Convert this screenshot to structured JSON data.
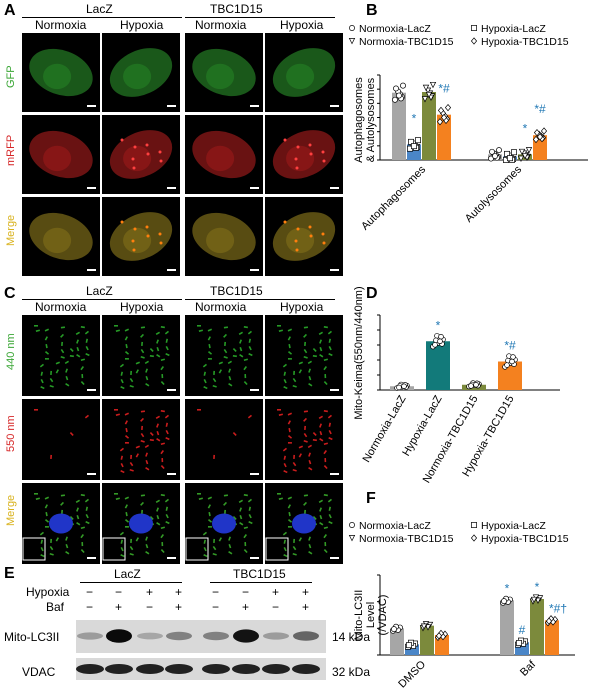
{
  "panels": {
    "A": {
      "letter": "A",
      "groups": [
        "LacZ",
        "TBC1D15"
      ],
      "conditions": [
        "Normoxia",
        "Hypoxia",
        "Normoxia",
        "Hypoxia"
      ],
      "channels": [
        "GFP",
        "mRFP",
        "Merge"
      ],
      "channel_colors": [
        "#3aa635",
        "#d62728",
        "#d9b21c"
      ]
    },
    "B": {
      "letter": "B"
    },
    "C": {
      "letter": "C",
      "groups": [
        "LacZ",
        "TBC1D15"
      ],
      "conditions": [
        "Normoxia",
        "Hypoxia",
        "Normoxia",
        "Hypoxia"
      ],
      "channels": [
        "440 nm",
        "550 nm",
        "Merge"
      ],
      "channel_colors": [
        "#3aa635",
        "#d62728",
        "#d9b21c"
      ]
    },
    "D": {
      "letter": "D"
    },
    "E": {
      "letter": "E",
      "groups": [
        "LacZ",
        "TBC1D15"
      ],
      "row_labels": [
        "Hypoxia",
        "Baf"
      ],
      "hypoxia_signs": [
        "−",
        "−",
        "+",
        "+",
        "−",
        "−",
        "+",
        "+"
      ],
      "baf_signs": [
        "−",
        "+",
        "−",
        "+",
        "−",
        "+",
        "−",
        "+"
      ],
      "bands": [
        "Mito-LC3II",
        "VDAC"
      ],
      "sizes": [
        "14 kDa",
        "32 kDa"
      ]
    },
    "F": {
      "letter": "F"
    }
  },
  "chart_data": [
    {
      "panel": "B",
      "type": "bar",
      "ylabel": "Autophagosomes & Autolysosomes",
      "categories": [
        "Autophagosomes",
        "Autolysosomes"
      ],
      "series": [
        {
          "name": "Normoxia-LacZ",
          "color": "#a6a6a6",
          "marker": "circle",
          "values": [
            95,
            8
          ]
        },
        {
          "name": "Hypoxia-LacZ",
          "color": "#4a86c8",
          "marker": "square",
          "values": [
            22,
            5
          ]
        },
        {
          "name": "Normoxia-TBC1D15",
          "color": "#7c8a3c",
          "marker": "triangle",
          "values": [
            96,
            8
          ]
        },
        {
          "name": "Hypoxia-TBC1D15",
          "color": "#f4811f",
          "marker": "diamond",
          "values": [
            64,
            35
          ]
        }
      ],
      "annotations": [
        [
          "",
          "*",
          "",
          "*#"
        ],
        [
          "",
          "",
          "*",
          "*#"
        ]
      ],
      "ylim": [
        0,
        120
      ]
    },
    {
      "panel": "D",
      "type": "bar",
      "ylabel": "Mito-Keima(550nm/440nm)",
      "categories": [
        "Normoxia-LacZ",
        "Hypoxia-LacZ",
        "Normoxia-TBC1D15",
        "Hypoxia-TBC1D15"
      ],
      "colors": [
        "#a6a6a6",
        "#127a7a",
        "#7c8a3c",
        "#f4811f"
      ],
      "values": [
        0.05,
        0.65,
        0.07,
        0.38
      ],
      "annotations": [
        "",
        "*",
        "",
        "*#"
      ],
      "ylim": [
        0,
        1.0
      ]
    },
    {
      "panel": "F",
      "type": "bar",
      "ylabel": "Mito-LC3II Level (/VDAC)",
      "categories": [
        "DMSO",
        "Baf"
      ],
      "series": [
        {
          "name": "Normoxia-LacZ",
          "color": "#a6a6a6",
          "marker": "circle",
          "values": [
            1.0,
            2.05
          ]
        },
        {
          "name": "Hypoxia-LacZ",
          "color": "#4a86c8",
          "marker": "square",
          "values": [
            0.4,
            0.48
          ]
        },
        {
          "name": "Normoxia-TBC1D15",
          "color": "#7c8a3c",
          "marker": "triangle",
          "values": [
            1.1,
            2.1
          ]
        },
        {
          "name": "Hypoxia-TBC1D15",
          "color": "#f4811f",
          "marker": "diamond",
          "values": [
            0.75,
            1.3
          ]
        }
      ],
      "annotations": [
        [
          "",
          "",
          "",
          ""
        ],
        [
          "*",
          "#",
          "*",
          "*#†"
        ]
      ],
      "ylim": [
        0,
        3
      ]
    }
  ]
}
